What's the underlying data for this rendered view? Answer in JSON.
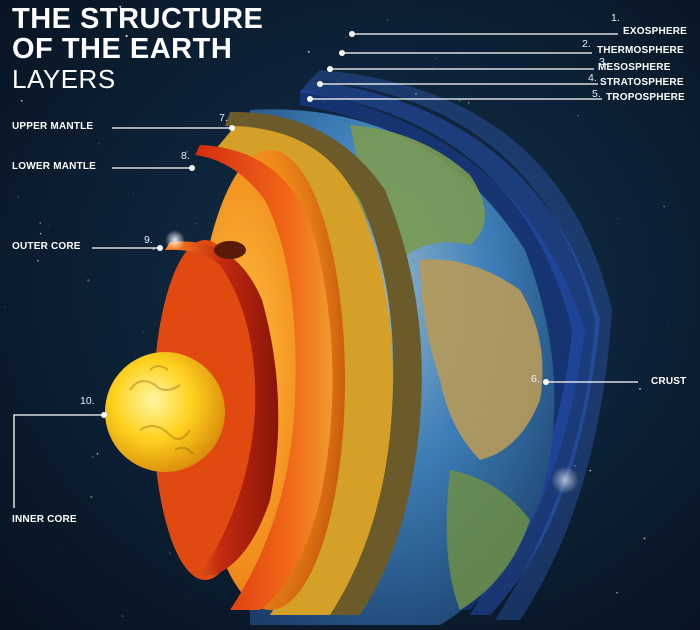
{
  "header": {
    "title_line1": "THE STRUCTURE",
    "title_line2": "OF THE EARTH",
    "subtitle": "LAYERS"
  },
  "labels": [
    {
      "number": "1.",
      "name": "EXOSPHERE"
    },
    {
      "number": "2.",
      "name": "THERMOSPHERE"
    },
    {
      "number": "3.",
      "name": "MESOSPHERE"
    },
    {
      "number": "4.",
      "name": "STRATOSPHERE"
    },
    {
      "number": "5.",
      "name": "TROPOSPHERE"
    },
    {
      "number": "6.",
      "name": "CRUST"
    },
    {
      "number": "7.",
      "name": "UPPER MANTLE"
    },
    {
      "number": "8.",
      "name": "LOWER MANTLE"
    },
    {
      "number": "9.",
      "name": "OUTER CORE"
    },
    {
      "number": "10.",
      "name": "INNER CORE"
    }
  ],
  "colors": {
    "background": "#0b1a2b",
    "atmosphere": "#3d6fe0",
    "ocean": "#2f6fb0",
    "land": "#7a9a52",
    "crust": "#6b5a2a",
    "upper_mantle": "#f08a1a",
    "lower_mantle": "#e8501a",
    "outer_core": "#c02a10",
    "inner_core": "#ffd21f"
  }
}
